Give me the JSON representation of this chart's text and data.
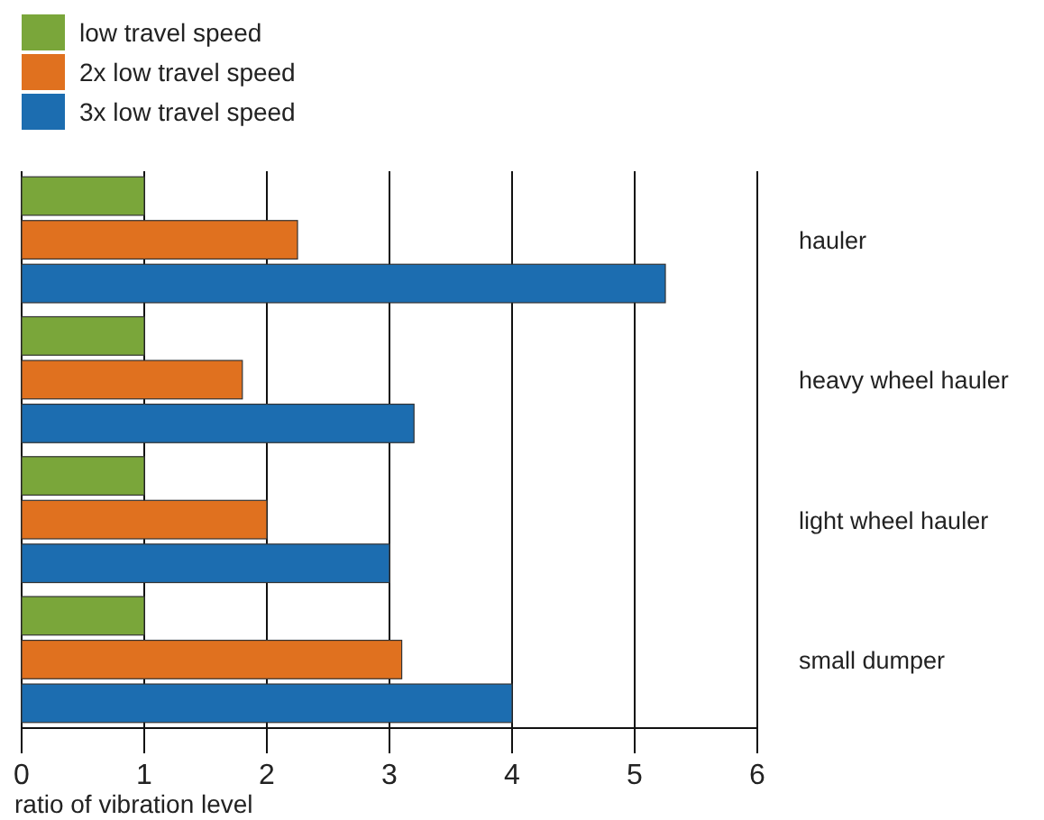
{
  "chart_data": {
    "type": "bar",
    "orientation": "horizontal",
    "xlabel": "ratio of vibration level",
    "categories": [
      "hauler",
      "heavy wheel hauler",
      "light wheel hauler",
      "small dumper"
    ],
    "series": [
      {
        "name": "low travel speed",
        "color": "#7aa63a",
        "values": [
          1,
          1,
          1,
          1
        ]
      },
      {
        "name": "2x low travel speed",
        "color": "#e0711f",
        "values": [
          2.25,
          1.8,
          2,
          3.1
        ]
      },
      {
        "name": "3x low travel speed",
        "color": "#1c6db0",
        "values": [
          5.25,
          3.2,
          3,
          4
        ]
      }
    ],
    "xlim": [
      0,
      6
    ],
    "xticks": [
      0,
      1,
      2,
      3,
      4,
      5,
      6
    ],
    "grid": "x",
    "legend": "top left"
  }
}
